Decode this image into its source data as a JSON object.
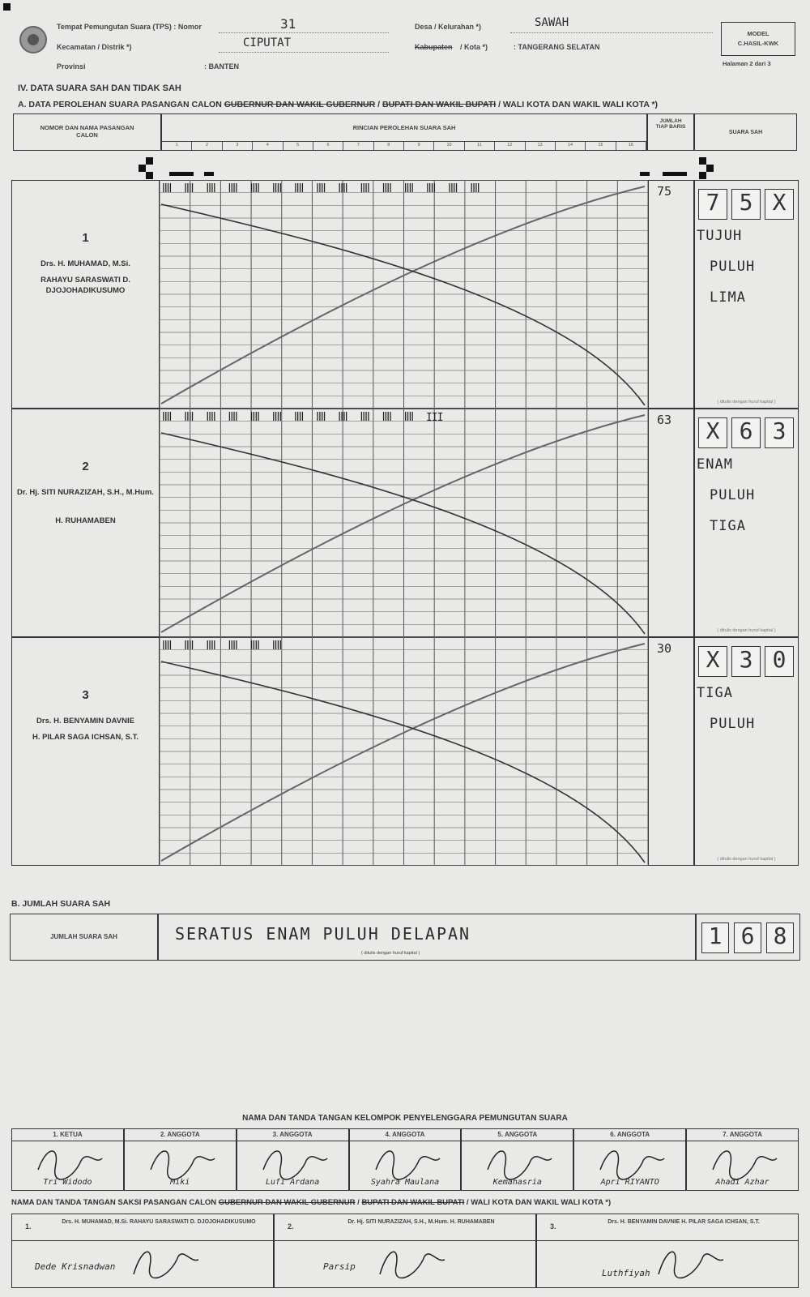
{
  "header": {
    "tps_label": "Tempat Pemungutan Suara (TPS) : Nomor",
    "tps_value": "31",
    "kecamatan_label": "Kecamatan / Distrik *)",
    "kecamatan_value": "CIPUTAT",
    "provinsi_label": "Provinsi",
    "provinsi_value": ": BANTEN",
    "desa_label": "Desa / Kelurahan *)",
    "desa_value": "SAWAH",
    "kabupaten_label": "Kabupaten",
    "kota_label": "/ Kota *)",
    "kota_value": ": TANGERANG SELATAN",
    "model_label": "MODEL",
    "model_code": "C.HASIL-KWK",
    "page_label": "Halaman 2 dari 3"
  },
  "section": {
    "title_iv": "IV.    DATA SUARA SAH DAN TIDAK SAH",
    "title_a_prefix": "A. DATA PEROLEHAN SUARA PASANGAN CALON",
    "title_a_strike1": "GUBERNUR DAN WAKIL GUBERNUR",
    "title_a_sep": " / ",
    "title_a_strike2": "BUPATI DAN WAKIL BUPATI",
    "title_a_suffix": " / WALI KOTA DAN WAKIL WALI KOTA *)"
  },
  "table_head": {
    "col1": "NOMOR DAN NAMA PASANGAN CALON",
    "col2": "RINCIAN PEROLEHAN SUARA SAH",
    "col3": "JUMLAH TIAP BARIS",
    "col4": "SUARA SAH",
    "sub_numbers": [
      "1",
      "2",
      "3",
      "4",
      "5",
      "6",
      "7",
      "8",
      "9",
      "10",
      "11",
      "12",
      "13",
      "14",
      "15",
      "16"
    ]
  },
  "candidates": [
    {
      "no": "1",
      "name1": "Drs. H. MUHAMAD, M.Si.",
      "name2": "RAHAYU SARASWATI D. DJOJOHADIKUSUMO",
      "tally": "ꟾꟾꟾꟾ ꟾꟾꟾꟾ ꟾꟾꟾꟾ ꟾꟾꟾꟾ ꟾꟾꟾꟾ ꟾꟾꟾꟾ ꟾꟾꟾꟾ ꟾꟾꟾꟾ ꟾꟾꟾꟾ ꟾꟾꟾꟾ ꟾꟾꟾꟾ ꟾꟾꟾꟾ ꟾꟾꟾꟾ ꟾꟾꟾꟾ ꟾꟾꟾꟾ",
      "row_total": "75",
      "digits": [
        "7",
        "5",
        "X"
      ],
      "words": [
        "TUJUH",
        "PULUH",
        "LIMA"
      ]
    },
    {
      "no": "2",
      "name1": "Dr. Hj. SITI NURAZIZAH, S.H., M.Hum.",
      "name2": "H. RUHAMABEN",
      "tally": "ꟾꟾꟾꟾ ꟾꟾꟾꟾ ꟾꟾꟾꟾ ꟾꟾꟾꟾ ꟾꟾꟾꟾ ꟾꟾꟾꟾ ꟾꟾꟾꟾ ꟾꟾꟾꟾ ꟾꟾꟾꟾ ꟾꟾꟾꟾ ꟾꟾꟾꟾ ꟾꟾꟾꟾ III",
      "row_total": "63",
      "digits": [
        "X",
        "6",
        "3"
      ],
      "words": [
        "ENAM",
        "PULUH",
        "TIGA"
      ]
    },
    {
      "no": "3",
      "name1": "Drs. H. BENYAMIN DAVNIE",
      "name2": "H. PILAR SAGA ICHSAN, S.T.",
      "tally": "ꟾꟾꟾꟾ ꟾꟾꟾꟾ ꟾꟾꟾꟾ ꟾꟾꟾꟾ ꟾꟾꟾꟾ ꟾꟾꟾꟾ",
      "row_total": "30",
      "digits": [
        "X",
        "3",
        "0"
      ],
      "words": [
        "TIGA",
        "PULUH"
      ]
    }
  ],
  "hint": "( ditulis dengan huruf kapital )",
  "section_b": {
    "title": "B. JUMLAH SUARA SAH",
    "label": "JUMLAH SUARA SAH",
    "words": "SERATUS ENAM PULUH DELAPAN",
    "digits": [
      "1",
      "6",
      "8"
    ]
  },
  "kpps": {
    "title": "NAMA DAN TANDA TANGAN KELOMPOK PENYELENGGARA PEMUNGUTAN SUARA",
    "members": [
      {
        "role": "1. KETUA",
        "name": "Tri Widodo"
      },
      {
        "role": "2. ANGGOTA",
        "name": "Miki"
      },
      {
        "role": "3. ANGGOTA",
        "name": "Lufi Ardana"
      },
      {
        "role": "4. ANGGOTA",
        "name": "Syahra Maulana"
      },
      {
        "role": "5. ANGGOTA",
        "name": "Kemahasria"
      },
      {
        "role": "6. ANGGOTA",
        "name": "Apri RIYANTO"
      },
      {
        "role": "7. ANGGOTA",
        "name": "Ahadi Azhar"
      }
    ]
  },
  "saksi": {
    "title_prefix": "NAMA DAN TANDA TANGAN SAKSI PASANGAN CALON ",
    "title_strike1": "GUBERNUR DAN WAKIL GUBERNUR",
    "title_sep": " / ",
    "title_strike2": "BUPATI DAN WAKIL BUPATI",
    "title_suffix": " / WALI KOTA DAN WAKIL WALI KOTA *)",
    "entries": [
      {
        "no": "1.",
        "cand": "Drs. H. MUHAMAD, M.Si. RAHAYU SARASWATI D. DJOJOHADIKUSUMO",
        "name": "Dede Krisnadwan"
      },
      {
        "no": "2.",
        "cand": "Dr. Hj. SITI NURAZIZAH, S.H., M.Hum. H. RUHAMABEN",
        "name": "Parsip"
      },
      {
        "no": "3.",
        "cand": "Drs. H. BENYAMIN DAVNIE H. PILAR SAGA ICHSAN, S.T.",
        "name": "Luthfiyah"
      }
    ]
  }
}
